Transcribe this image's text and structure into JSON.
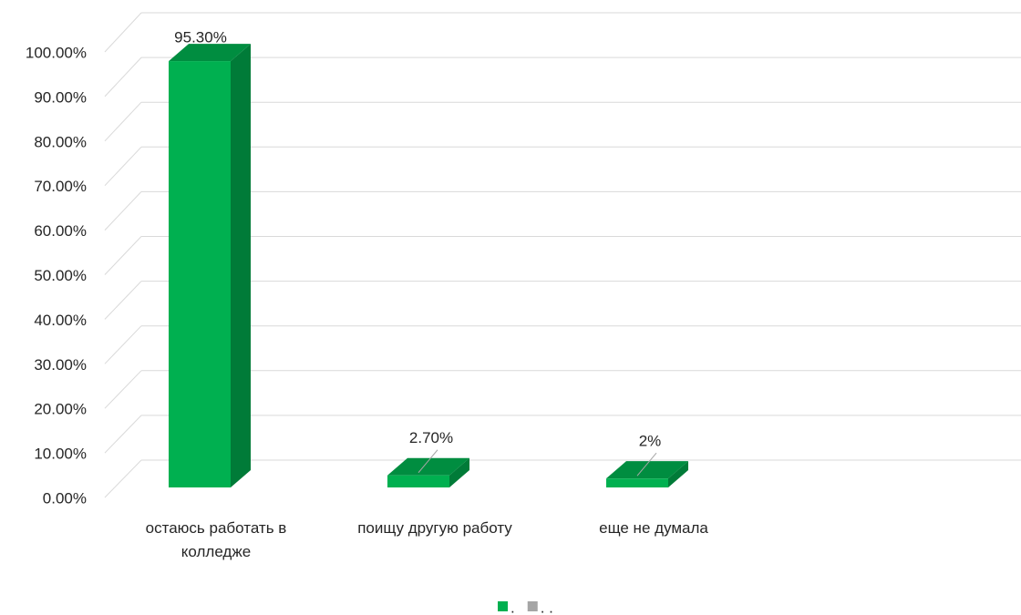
{
  "chart_data": {
    "type": "bar3d",
    "categories": [
      "остаюсь работать в колледже",
      "поищу другую работу",
      "еще не думала"
    ],
    "series": [
      {
        "name": ".",
        "color": "#00b050",
        "values": [
          95.3,
          2.7,
          2
        ],
        "value_labels": [
          "95.30%",
          "2.70%",
          "2%"
        ]
      },
      {
        "name": ". .",
        "color": "#a5a5a5",
        "values": [
          null,
          null,
          null
        ]
      }
    ],
    "ylim": [
      0,
      100
    ],
    "yticks": [
      {
        "value": 0,
        "label": "0.00%"
      },
      {
        "value": 10,
        "label": "10.00%"
      },
      {
        "value": 20,
        "label": "20.00%"
      },
      {
        "value": 30,
        "label": "30.00%"
      },
      {
        "value": 40,
        "label": "40.00%"
      },
      {
        "value": 50,
        "label": "50.00%"
      },
      {
        "value": 60,
        "label": "60.00%"
      },
      {
        "value": 70,
        "label": "70.00%"
      },
      {
        "value": 80,
        "label": "80.00%"
      },
      {
        "value": 90,
        "label": "90.00%"
      },
      {
        "value": 100,
        "label": "100.00%"
      }
    ],
    "grid": true
  }
}
